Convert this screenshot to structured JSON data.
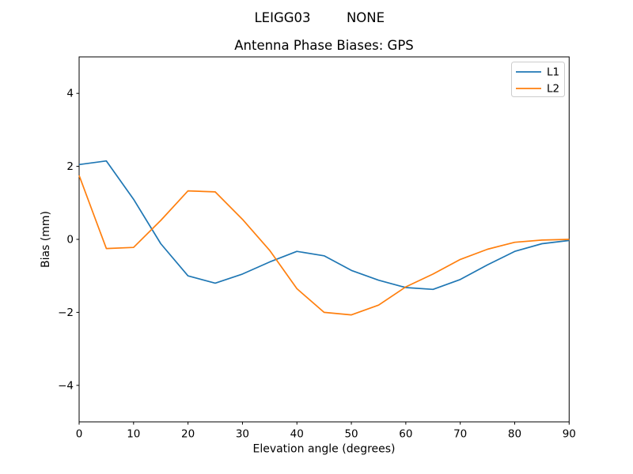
{
  "figure": {
    "suptitle_left": "LEIGG03",
    "suptitle_right": "NONE"
  },
  "legend": {
    "position": "upper right",
    "items": [
      {
        "label": "L1",
        "color": "#1f77b4"
      },
      {
        "label": "L2",
        "color": "#ff7f0e"
      }
    ]
  },
  "chart_data": {
    "type": "line",
    "title": "Antenna Phase Biases: GPS",
    "suptitle": "LEIGG03        NONE",
    "xlabel": "Elevation angle (degrees)",
    "ylabel": "Bias (mm)",
    "xlim": [
      0,
      90
    ],
    "ylim": [
      -5,
      5
    ],
    "xticks": [
      0,
      10,
      20,
      30,
      40,
      50,
      60,
      70,
      80,
      90
    ],
    "yticks": [
      -4,
      -2,
      0,
      2,
      4
    ],
    "grid": false,
    "legend_position": "upper right",
    "x": [
      0,
      5,
      10,
      15,
      20,
      25,
      30,
      35,
      40,
      45,
      50,
      55,
      60,
      65,
      70,
      75,
      80,
      85,
      90
    ],
    "series": [
      {
        "name": "L1",
        "color": "#1f77b4",
        "values": [
          2.05,
          2.15,
          1.1,
          -0.12,
          -1.0,
          -1.2,
          -0.95,
          -0.62,
          -0.33,
          -0.45,
          -0.85,
          -1.12,
          -1.32,
          -1.37,
          -1.1,
          -0.7,
          -0.33,
          -0.12,
          -0.03
        ]
      },
      {
        "name": "L2",
        "color": "#ff7f0e",
        "values": [
          1.75,
          -0.25,
          -0.22,
          0.52,
          1.33,
          1.3,
          0.55,
          -0.3,
          -1.35,
          -2.0,
          -2.07,
          -1.8,
          -1.3,
          -0.95,
          -0.55,
          -0.27,
          -0.08,
          -0.02,
          0.0
        ]
      }
    ]
  }
}
